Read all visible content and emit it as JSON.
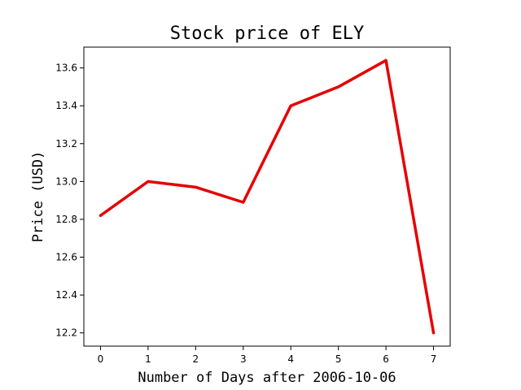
{
  "chart_data": {
    "type": "line",
    "title": "Stock price of ELY",
    "xlabel": "Number of Days after 2006-10-06",
    "ylabel": "Price (USD)",
    "x": [
      0,
      1,
      2,
      3,
      4,
      5,
      6,
      7
    ],
    "series": [
      {
        "values": [
          12.82,
          13.0,
          12.97,
          12.89,
          13.4,
          13.5,
          13.64,
          12.2
        ],
        "color": "#e60000"
      }
    ],
    "xticks": [
      "0",
      "1",
      "2",
      "3",
      "4",
      "5",
      "6",
      "7"
    ],
    "yticks": [
      "12.2",
      "12.4",
      "12.6",
      "12.8",
      "13.0",
      "13.2",
      "13.4",
      "13.6"
    ],
    "xlim": [
      -0.35,
      7.35
    ],
    "ylim": [
      12.13,
      13.71
    ],
    "grid": false
  }
}
